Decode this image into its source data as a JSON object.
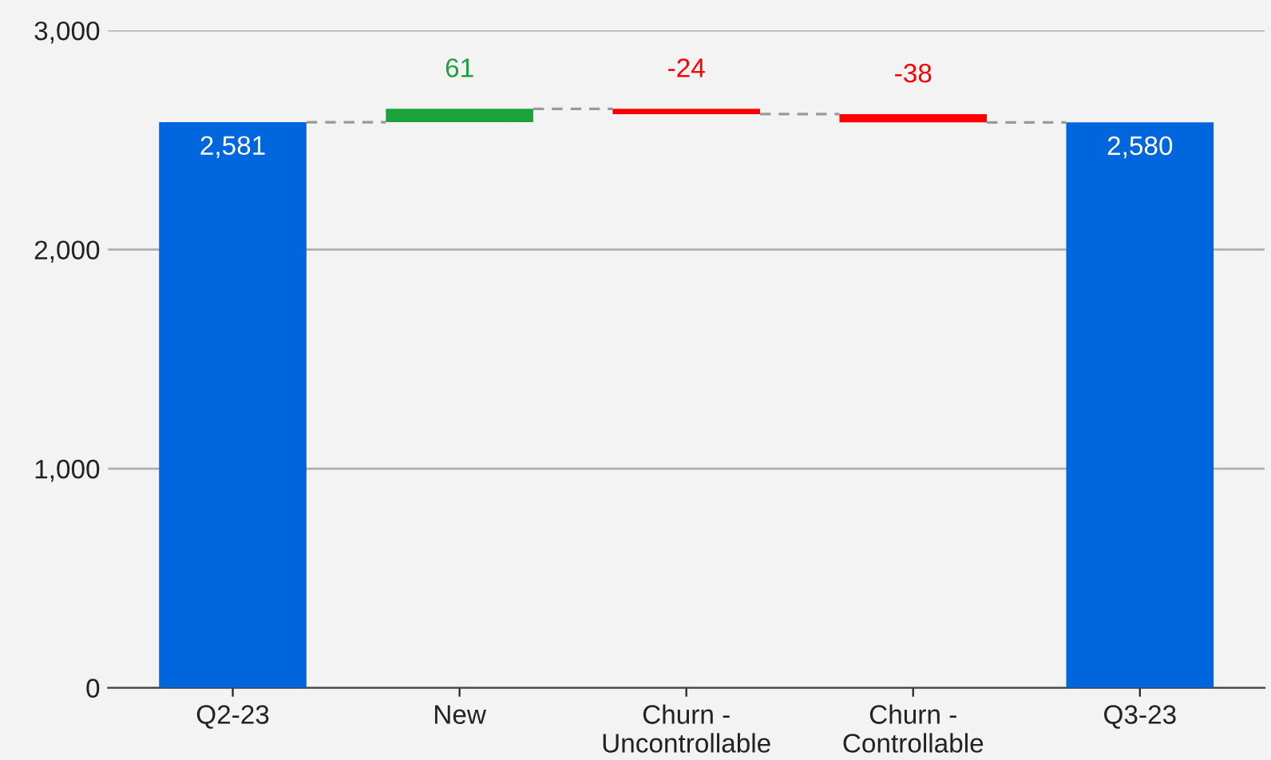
{
  "chart_data": {
    "type": "bar",
    "categories": [
      "Q2-23",
      "New",
      "Churn -\nUncontrollable",
      "Churn -\nControllable",
      "Q3-23"
    ],
    "values": [
      2581,
      61,
      -24,
      -38,
      2580
    ],
    "base": [
      0,
      2581,
      2642,
      2618,
      0
    ],
    "colors": [
      "#0066dd",
      "#1aa33a",
      "#ff0000",
      "#ff0000",
      "#0066dd"
    ],
    "value_labels": [
      "2,581",
      "61",
      "-24",
      "-38",
      "2,580"
    ],
    "ylim": [
      0,
      3000
    ],
    "yticks": [
      {
        "value": 0,
        "label": "0"
      },
      {
        "value": 1000,
        "label": "1,000"
      },
      {
        "value": 2000,
        "label": "2,000"
      },
      {
        "value": 3000,
        "label": "3,000"
      }
    ],
    "grid": "y"
  }
}
